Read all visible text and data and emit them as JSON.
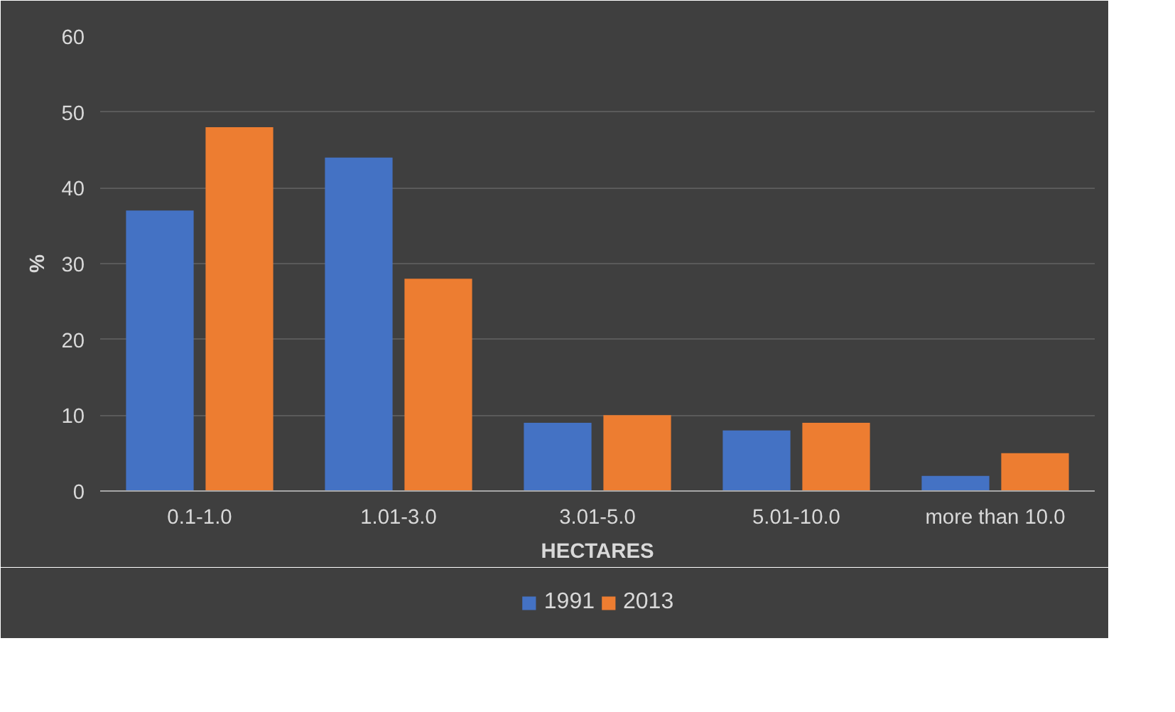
{
  "chart_data": {
    "type": "bar",
    "categories": [
      "0.1-1.0",
      "1.01-3.0",
      "3.01-5.0",
      "5.01-10.0",
      "more than 10.0"
    ],
    "series": [
      {
        "name": "1991",
        "color": "#4472c4",
        "values": [
          37,
          44,
          9,
          8,
          2
        ]
      },
      {
        "name": "2013",
        "color": "#ed7d31",
        "values": [
          48,
          28,
          10,
          9,
          5
        ]
      }
    ],
    "xlabel": "HECTARES",
    "ylabel": "%",
    "ylim": [
      0,
      60
    ],
    "yticks": [
      0,
      10,
      20,
      30,
      40,
      50,
      60
    ],
    "grid": "y",
    "legend": "bottom"
  }
}
